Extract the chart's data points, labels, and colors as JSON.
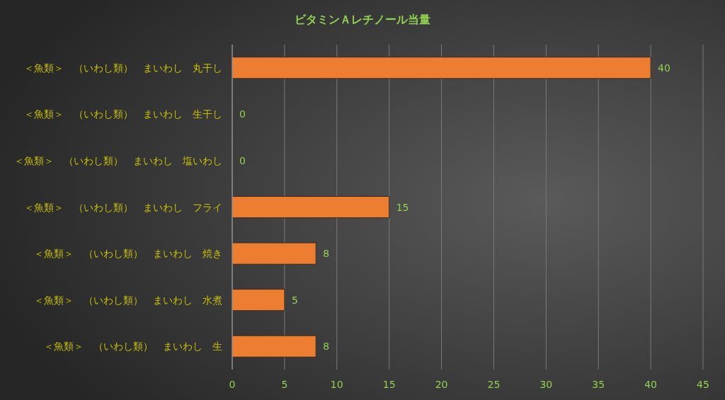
{
  "chart_data": {
    "type": "bar",
    "orientation": "horizontal",
    "title": "ビタミンＡレチノール当量",
    "categories": [
      "＜魚類＞　（いわし類）　まいわし　丸干し",
      "＜魚類＞　（いわし類）　まいわし　生干し",
      "＜魚類＞　（いわし類）　まいわし　塩いわし",
      "＜魚類＞　（いわし類）　まいわし　フライ",
      "＜魚類＞　（いわし類）　まいわし　焼き",
      "＜魚類＞　（いわし類）　まいわし　水煮",
      "＜魚類＞　（いわし類）　まいわし　生"
    ],
    "values": [
      40,
      0,
      0,
      15,
      8,
      5,
      8
    ],
    "color": "#ed7d31",
    "xlim": [
      0,
      45
    ],
    "xticks": [
      0,
      5,
      10,
      15,
      20,
      25,
      30,
      35,
      40,
      45
    ],
    "grid": "x",
    "data_labels": true
  }
}
